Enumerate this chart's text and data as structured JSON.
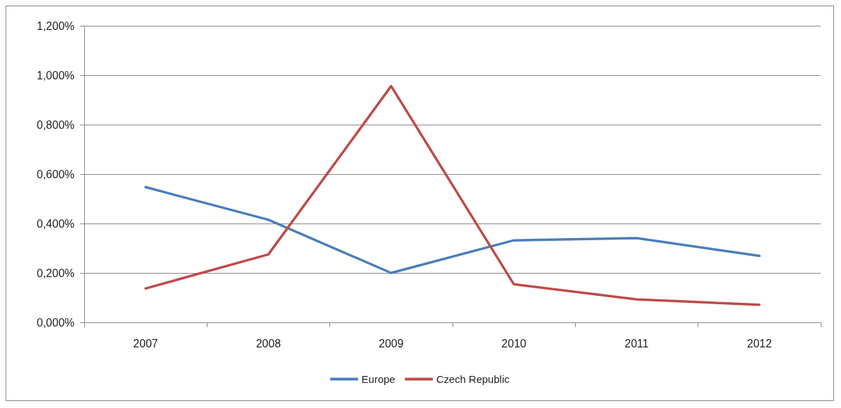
{
  "chart_data": {
    "type": "line",
    "categories": [
      "2007",
      "2008",
      "2009",
      "2010",
      "2011",
      "2012"
    ],
    "series": [
      {
        "name": "Europe",
        "color": "#4a7ebb",
        "values": [
          0.547,
          0.415,
          0.2,
          0.332,
          0.341,
          0.269
        ]
      },
      {
        "name": "Czech Republic",
        "color": "#be4b48",
        "values": [
          0.137,
          0.275,
          0.956,
          0.154,
          0.093,
          0.071
        ]
      }
    ],
    "ylim": [
      0,
      1.2
    ],
    "yticks": [
      {
        "value": 0,
        "label": "0,000%"
      },
      {
        "value": 0.2,
        "label": "0,200%"
      },
      {
        "value": 0.4,
        "label": "0,400%"
      },
      {
        "value": 0.6,
        "label": "0,600%"
      },
      {
        "value": 0.8,
        "label": "0,800%"
      },
      {
        "value": 1,
        "label": "1,000%"
      },
      {
        "value": 1.2,
        "label": "1,200%"
      }
    ],
    "grid": "y",
    "legend": "bottom",
    "marker": "none",
    "line_style": "solid"
  }
}
